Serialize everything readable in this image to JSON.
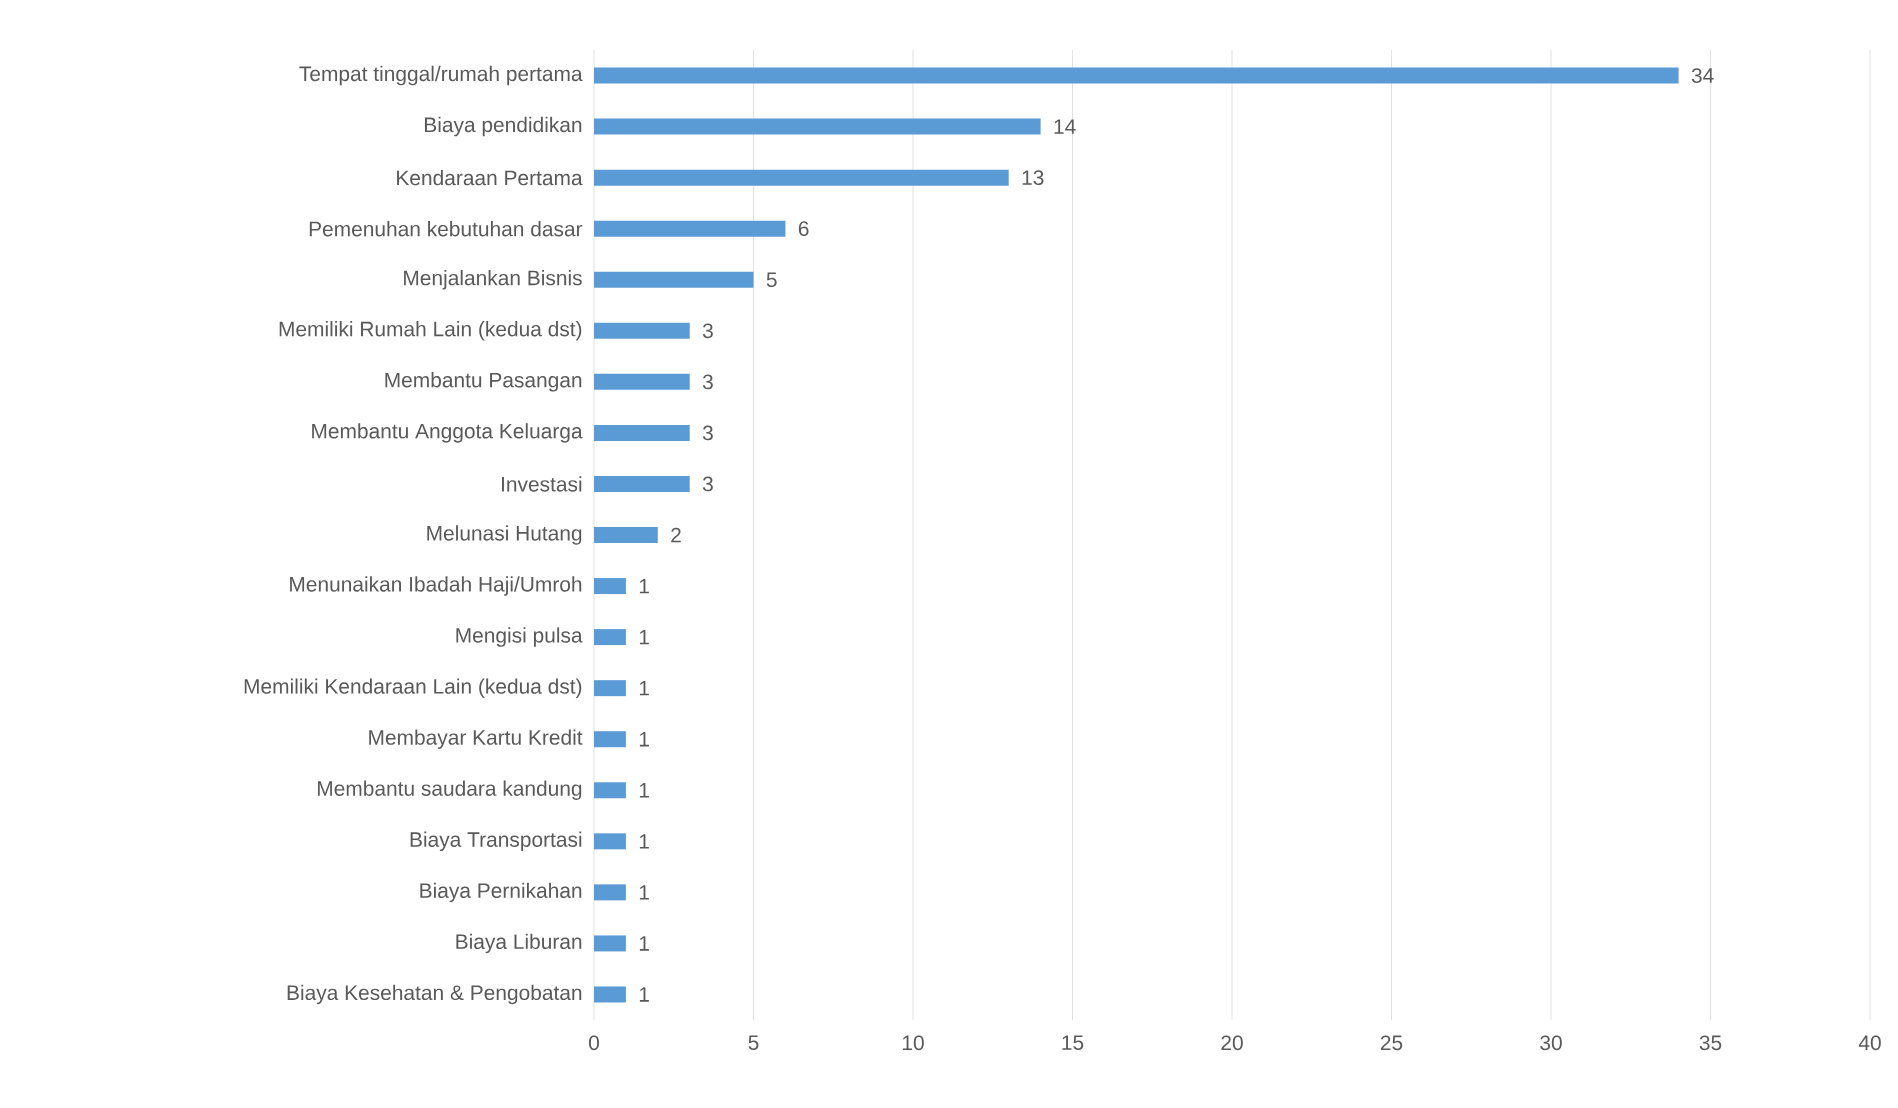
{
  "chart_data": {
    "type": "bar",
    "orientation": "horizontal",
    "categories": [
      "Tempat tinggal/rumah pertama",
      "Biaya pendidikan",
      "Kendaraan Pertama",
      "Pemenuhan kebutuhan dasar",
      "Menjalankan Bisnis",
      "Memiliki Rumah Lain (kedua dst)",
      "Membantu Pasangan",
      "Membantu Anggota Keluarga",
      "Investasi",
      "Melunasi Hutang",
      "Menunaikan Ibadah Haji/Umroh",
      "Mengisi pulsa",
      "Memiliki Kendaraan Lain (kedua dst)",
      "Membayar Kartu Kredit",
      "Membantu saudara kandung",
      "Biaya Transportasi",
      "Biaya Pernikahan",
      "Biaya Liburan",
      "Biaya Kesehatan & Pengobatan"
    ],
    "values": [
      34,
      14,
      13,
      6,
      5,
      3,
      3,
      3,
      3,
      2,
      1,
      1,
      1,
      1,
      1,
      1,
      1,
      1,
      1
    ],
    "color": "#5b9bd5",
    "data_labels": true,
    "grid": "x",
    "xlim": [
      0,
      40
    ],
    "xticks": [
      0,
      5,
      10,
      15,
      20,
      25,
      30,
      35,
      40
    ]
  }
}
